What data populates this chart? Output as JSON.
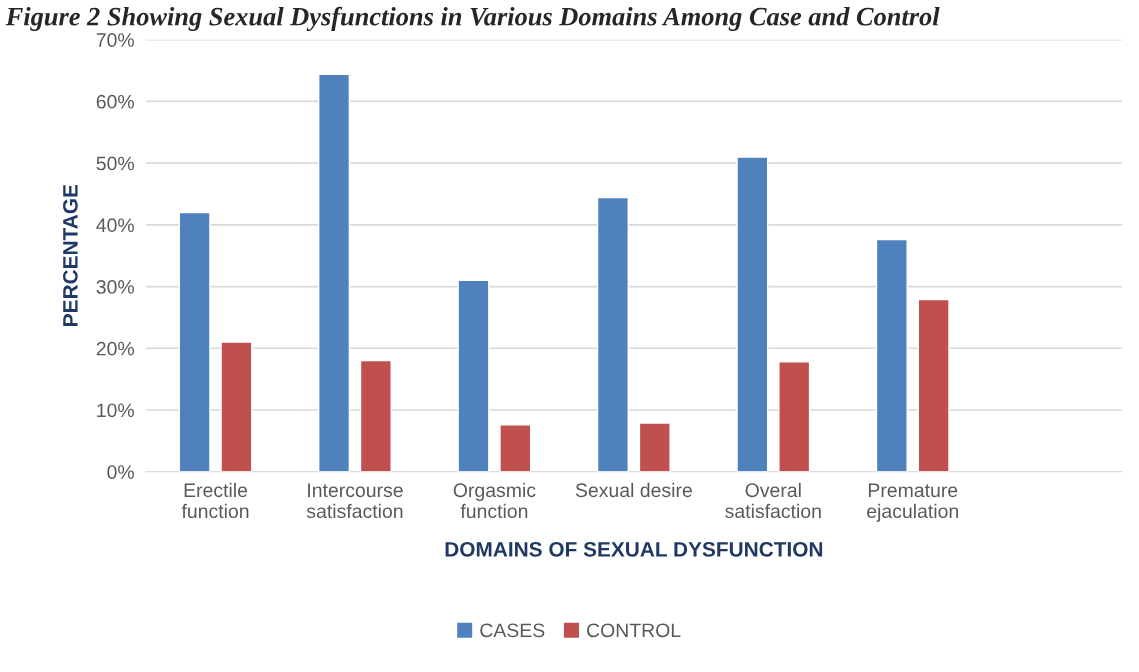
{
  "chart_data": {
    "type": "bar",
    "title": "Figure 2 Showing Sexual Dysfunctions in Various Domains Among Case and Control",
    "xlabel": "DOMAINS OF SEXUAL DYSFUNCTION",
    "ylabel": "PERCENTAGE",
    "categories": [
      "Erectile\nfunction",
      "Intercourse\nsatisfaction",
      "Orgasmic\nfunction",
      "Sexual desire",
      "Overal\nsatisfaction",
      "Premature\nejaculation",
      null
    ],
    "series": [
      {
        "name": "CASES",
        "color": "#4f81bd",
        "values": [
          42,
          64.4,
          31,
          44.4,
          51,
          37.6,
          null
        ]
      },
      {
        "name": "CONTROL",
        "color": "#c0504d",
        "values": [
          21,
          18,
          7.6,
          7.9,
          17.8,
          27.9,
          null
        ]
      }
    ],
    "ylim": [
      0,
      70
    ],
    "yticks": [
      {
        "value": 0,
        "label": "0%"
      },
      {
        "value": 10,
        "label": "10%"
      },
      {
        "value": 20,
        "label": "20%"
      },
      {
        "value": 30,
        "label": "30%"
      },
      {
        "value": 40,
        "label": "40%"
      },
      {
        "value": 50,
        "label": "50%"
      },
      {
        "value": 60,
        "label": "60%"
      },
      {
        "value": 70,
        "label": "70%"
      }
    ],
    "grid": "y",
    "legend": "bottom"
  }
}
